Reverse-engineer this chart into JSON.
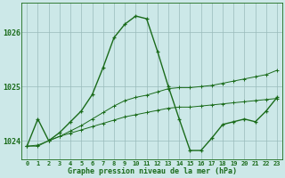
{
  "background_color": "#cce8e8",
  "plot_bg_color": "#cce8e8",
  "line_color": "#1a6b1a",
  "grid_color": "#99bbbb",
  "xlabel": "Graphe pression niveau de la mer (hPa)",
  "ylim": [
    1023.65,
    1026.55
  ],
  "xlim": [
    -0.5,
    23.5
  ],
  "yticks": [
    1024,
    1025,
    1026
  ],
  "xticks": [
    0,
    1,
    2,
    3,
    4,
    5,
    6,
    7,
    8,
    9,
    10,
    11,
    12,
    13,
    14,
    15,
    16,
    17,
    18,
    19,
    20,
    21,
    22,
    23
  ],
  "hours": [
    0,
    1,
    2,
    3,
    4,
    5,
    6,
    7,
    8,
    9,
    10,
    11,
    12,
    13,
    14,
    15,
    16,
    17,
    18,
    19,
    20,
    21,
    22,
    23
  ],
  "pressure_main": [
    1023.9,
    1024.4,
    1024.0,
    1024.15,
    1024.35,
    1024.55,
    1024.85,
    1025.35,
    1025.9,
    1026.15,
    1026.3,
    1026.25,
    1025.65,
    1025.0,
    1024.4,
    1023.82,
    1023.82,
    1024.05,
    1024.3,
    1024.35,
    1024.4,
    1024.35,
    1024.55,
    1024.8
  ],
  "pressure_line2": [
    1023.9,
    1023.92,
    1024.0,
    1024.08,
    1024.14,
    1024.2,
    1024.26,
    1024.32,
    1024.38,
    1024.44,
    1024.48,
    1024.52,
    1024.56,
    1024.6,
    1024.62,
    1024.62,
    1024.64,
    1024.66,
    1024.68,
    1024.7,
    1024.72,
    1024.74,
    1024.76,
    1024.78
  ],
  "pressure_line3": [
    1023.9,
    1023.9,
    1024.0,
    1024.08,
    1024.18,
    1024.28,
    1024.4,
    1024.52,
    1024.64,
    1024.74,
    1024.8,
    1024.84,
    1024.9,
    1024.96,
    1024.98,
    1024.98,
    1025.0,
    1025.02,
    1025.06,
    1025.1,
    1025.14,
    1025.18,
    1025.22,
    1025.3
  ]
}
